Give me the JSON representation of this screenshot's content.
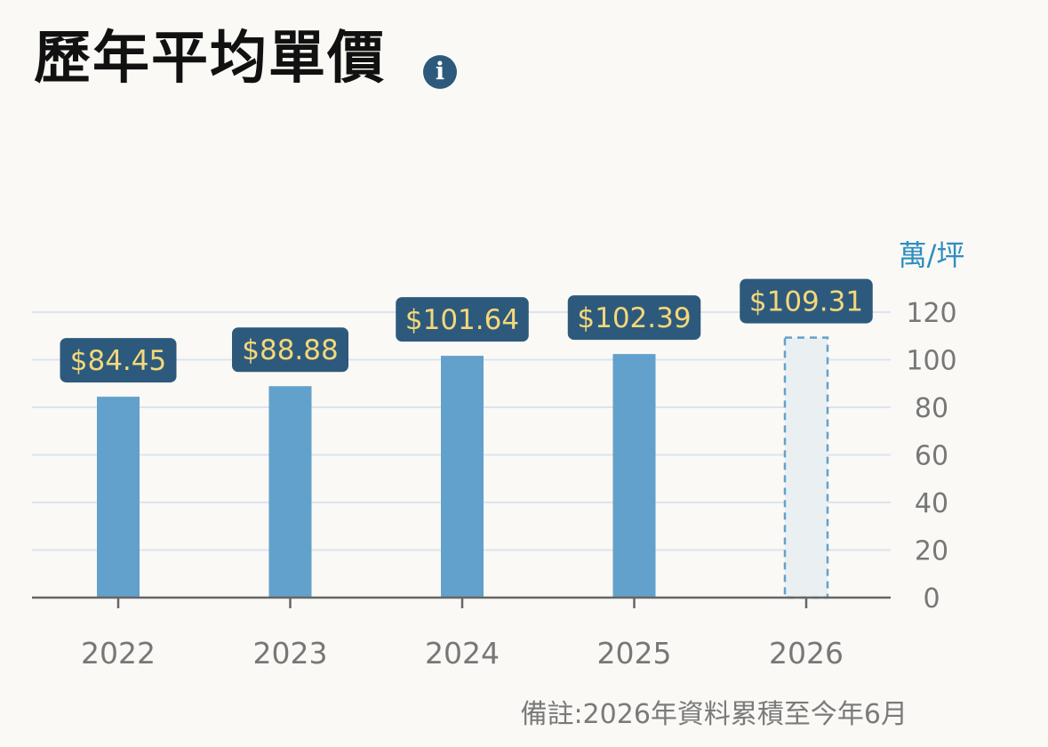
{
  "header": {
    "title": "歷年平均單價",
    "info_icon": "info-icon"
  },
  "chart_data": {
    "type": "bar",
    "categories": [
      "2022",
      "2023",
      "2024",
      "2025",
      "2026"
    ],
    "values": [
      84.45,
      88.88,
      101.64,
      102.39,
      109.31
    ],
    "value_labels": [
      "$84.45",
      "$88.88",
      "$101.64",
      "$102.39",
      "$109.31"
    ],
    "partial_year": "2026",
    "unit_label": "萬/坪",
    "ylim": [
      0,
      120
    ],
    "yticks": [
      0,
      20,
      40,
      60,
      80,
      100,
      120
    ],
    "y_axis_side": "right",
    "grid": true,
    "colors": {
      "bar": "#62a1cb",
      "partial_bar_fill": "#eaeff2",
      "partial_bar_stroke": "#62a1cb",
      "label_bg": "#2d5a7c",
      "label_text": "#f5d77a",
      "unit": "#2f8ec0",
      "grid": "#dde3ef",
      "axis": "#666666",
      "tick_text": "#777777"
    }
  },
  "footer": {
    "note": "備註:2026年資料累積至今年6月"
  }
}
